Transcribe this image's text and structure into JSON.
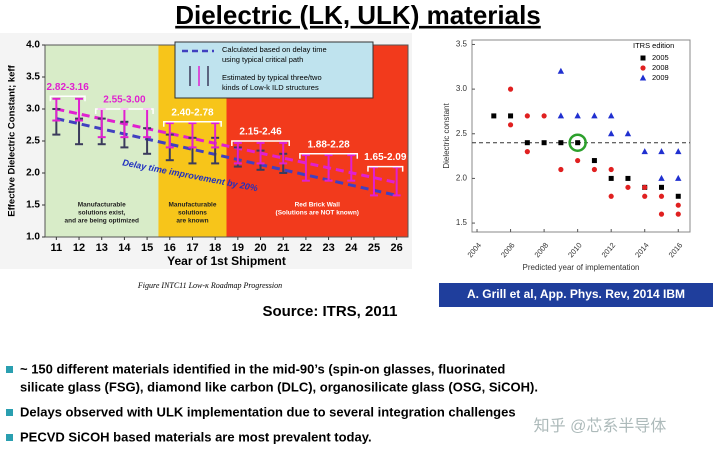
{
  "title": "Dielectric (LK, ULK) materials",
  "source": "Source: ITRS, 2011",
  "figure_caption": "Figure INTC11   Low-κ Roadmap Progression",
  "citation": "A. Grill et al, App. Phys. Rev, 2014 IBM",
  "bullets": [
    [
      "~ 150 different materials identified in the mid-90’s (spin-on glasses, fluorinated",
      "silicate glass  (FSG), diamond like carbon (DLC), organosilicate glass (OSG, SiCOH)."
    ],
    [
      "Delays observed with ULK implementation due to several integration challenges"
    ],
    [
      "PECVD SiCOH based materials are most prevalent today."
    ]
  ],
  "watermark": "知乎 @芯系半导体",
  "chart_data": [
    {
      "type": "errorbar",
      "x_label": "Year of 1st Shipment",
      "y_label": "Effective Dielectric Constant; keff",
      "xlim": [
        10.5,
        26.5
      ],
      "xticks": [
        11,
        12,
        13,
        14,
        15,
        16,
        17,
        18,
        19,
        20,
        21,
        22,
        23,
        24,
        25,
        26
      ],
      "ylim": [
        1.0,
        4.0
      ],
      "yticks": [
        {
          "value": 1,
          "label": "1.0"
        },
        1.5,
        {
          "value": 2,
          "label": "2.0"
        },
        2.5,
        {
          "value": 3,
          "label": "3.0"
        },
        3.5,
        {
          "value": 4,
          "label": "4.0"
        }
      ],
      "regions": [
        {
          "from": 10.5,
          "to": 15.5,
          "color": "#d8ecc8",
          "label": [
            "Manufacturable",
            "solutions exist,",
            "and are being optimized"
          ]
        },
        {
          "from": 15.5,
          "to": 18.5,
          "color": "#f7c51a",
          "label": [
            "Manufacturable",
            "solutions",
            "are known"
          ]
        },
        {
          "from": 18.5,
          "to": 26.5,
          "color": "#f23a1c",
          "label": [
            "Red Brick Wall",
            "(Solutions are NOT known)"
          ]
        }
      ],
      "series": [
        {
          "color": "#3b3b5c",
          "x": [
            11,
            12,
            13,
            14,
            15,
            16,
            17,
            18,
            19,
            20,
            21
          ],
          "values": [
            2.8,
            2.65,
            2.65,
            2.6,
            2.5,
            2.4,
            2.35,
            2.35,
            2.25,
            2.2,
            2.15
          ],
          "errors": [
            0.2,
            0.2,
            0.2,
            0.2,
            0.2,
            0.2,
            0.2,
            0.2,
            0.15,
            0.15,
            0.15
          ]
        },
        {
          "color": "#e020d0",
          "x": [
            11,
            12,
            13,
            14,
            15,
            16,
            17,
            18,
            19,
            20,
            21,
            22,
            23,
            24,
            25,
            26
          ],
          "values": [
            2.99,
            2.99,
            2.78,
            2.78,
            2.78,
            2.59,
            2.59,
            2.59,
            2.31,
            2.31,
            2.31,
            2.08,
            2.08,
            2.08,
            1.87,
            1.87
          ],
          "errors": [
            0.17,
            0.17,
            0.22,
            0.22,
            0.22,
            0.19,
            0.19,
            0.19,
            0.16,
            0.16,
            0.16,
            0.2,
            0.2,
            0.2,
            0.22,
            0.22
          ]
        }
      ],
      "trend_lines": [
        {
          "color": "#4040c0",
          "x": [
            11,
            26
          ],
          "values": [
            2.85,
            1.65
          ]
        },
        {
          "color": "#e020d0",
          "x": [
            11,
            26
          ],
          "values": [
            3.0,
            1.85
          ]
        }
      ],
      "range_labels": [
        {
          "text": "2.82-3.16",
          "x": [
            11,
            12
          ],
          "y": 3.2
        },
        {
          "text": "2.55-3.00",
          "x": [
            13,
            15
          ],
          "y": 3.0
        },
        {
          "text": "2.40-2.78",
          "x": [
            16,
            18
          ],
          "y": 2.8
        },
        {
          "text": "2.15-2.46",
          "x": [
            19,
            21
          ],
          "y": 2.5
        },
        {
          "text": "1.88-2.28",
          "x": [
            22,
            24
          ],
          "y": 2.3
        },
        {
          "text": "1.65-2.09",
          "x": [
            25,
            26
          ],
          "y": 2.1
        }
      ],
      "trend_annotation": "Delay time improvement by 20%",
      "legend": [
        "Calculated based on delay time",
        "using typical critical path",
        "Estimated by typical three/two",
        "kinds of Low-k ILD structures"
      ]
    },
    {
      "type": "scatter",
      "x_label": "Predicted year of implementation",
      "y_label": "Dielectric constant",
      "xlim": [
        2003.7,
        2016.7
      ],
      "xticks": [
        2004,
        2006,
        2008,
        2010,
        2012,
        2014,
        2016
      ],
      "ylim": [
        1.4,
        3.55
      ],
      "yticks": [
        1.5,
        {
          "value": 2,
          "label": "2.0"
        },
        2.5,
        {
          "value": 3,
          "label": "3.0"
        },
        3.5
      ],
      "legend_title": "ITRS edition",
      "reference_line": 2.4,
      "highlight": {
        "x": 2010,
        "y": 2.4,
        "color": "#2ca02c"
      },
      "series": [
        {
          "name": "2005",
          "color": "#000000",
          "marker": "square",
          "x": [
            2005,
            2006,
            2007,
            2008,
            2009,
            2010,
            2011,
            2012,
            2013,
            2014,
            2015,
            2016
          ],
          "values": [
            2.7,
            2.7,
            2.4,
            2.4,
            2.4,
            2.4,
            2.2,
            2.0,
            2.0,
            1.9,
            1.9,
            1.8
          ]
        },
        {
          "name": "2008",
          "color": "#e02020",
          "marker": "circle",
          "x": [
            2006,
            2006,
            2007,
            2007,
            2008,
            2009,
            2010,
            2011,
            2012,
            2012,
            2013,
            2014,
            2014,
            2015,
            2015,
            2016,
            2016
          ],
          "values": [
            3.0,
            2.6,
            2.3,
            2.7,
            2.7,
            2.1,
            2.2,
            2.1,
            2.1,
            1.8,
            1.9,
            1.9,
            1.8,
            1.8,
            1.6,
            1.7,
            1.6
          ]
        },
        {
          "name": "2009",
          "color": "#2030d0",
          "marker": "triangle",
          "x": [
            2009,
            2009,
            2010,
            2011,
            2012,
            2012,
            2013,
            2014,
            2015,
            2015,
            2016,
            2016
          ],
          "values": [
            3.2,
            2.7,
            2.7,
            2.7,
            2.7,
            2.5,
            2.5,
            2.3,
            2.3,
            2.0,
            2.3,
            2.0
          ]
        }
      ]
    }
  ]
}
